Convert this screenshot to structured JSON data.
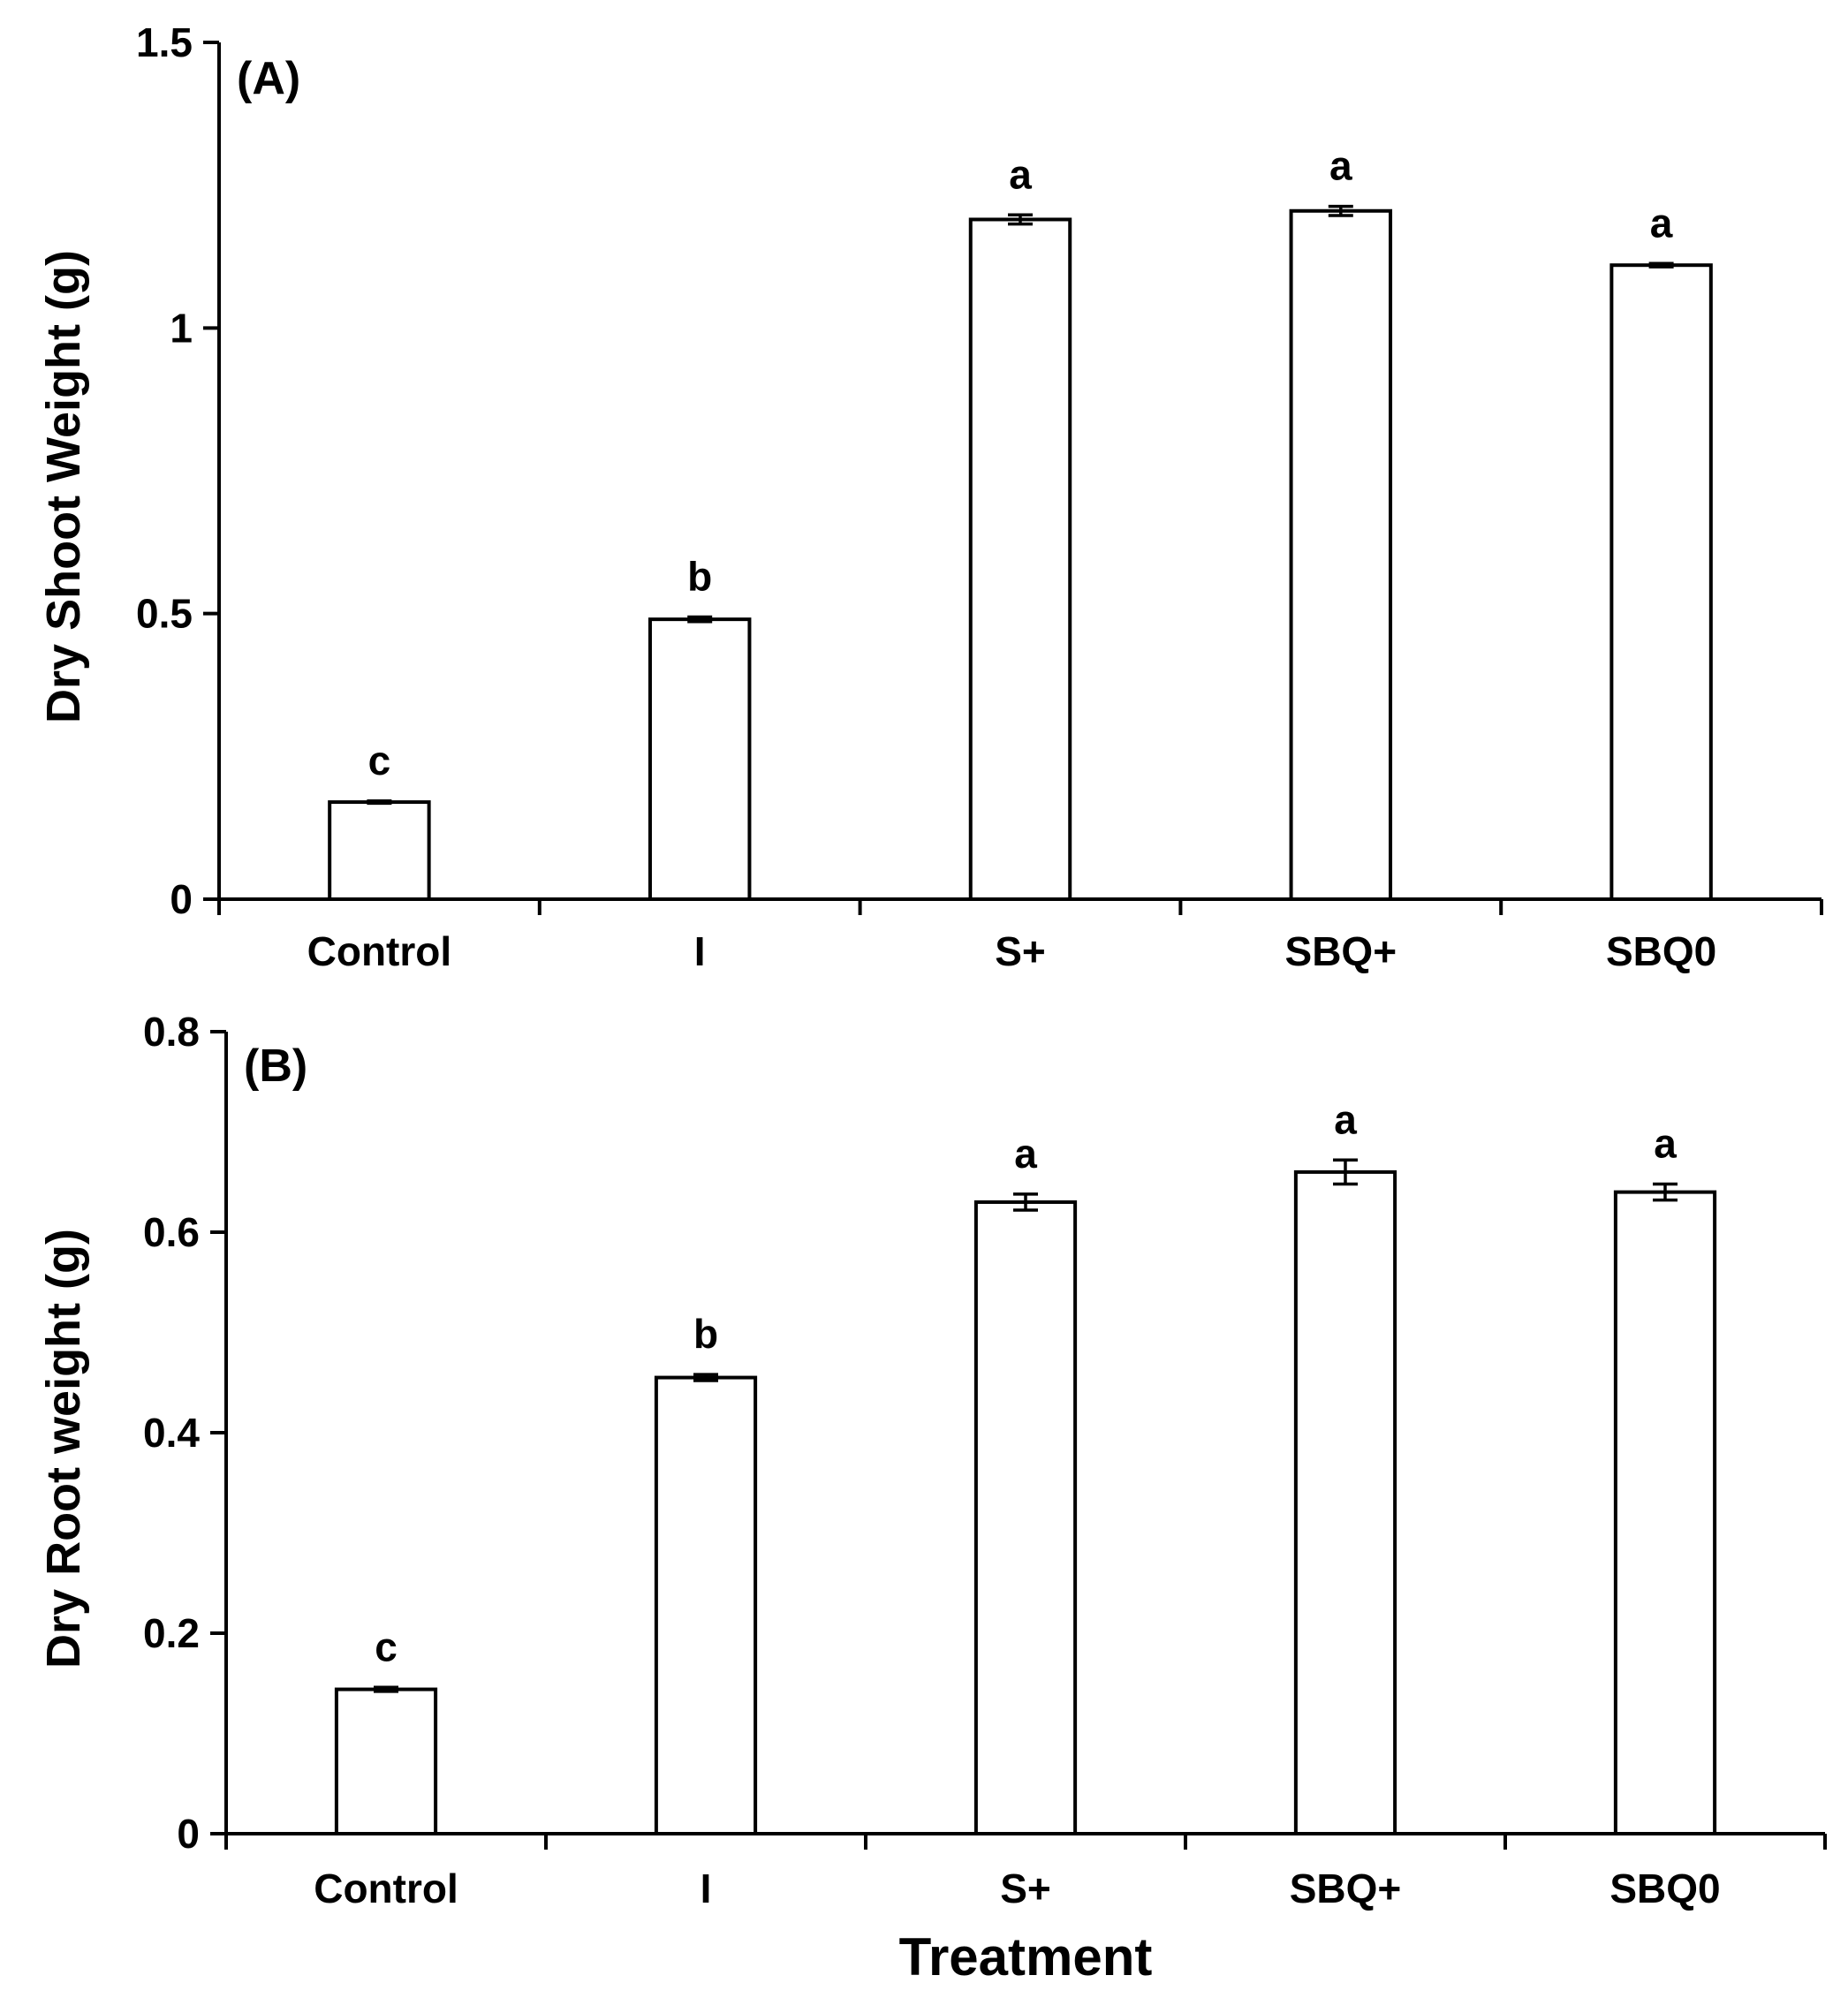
{
  "chart_data": [
    {
      "type": "bar",
      "panel_label": "(A)",
      "title": "",
      "xlabel": "",
      "ylabel": "Dry Shoot Weight (g)",
      "categories": [
        "Control",
        "I",
        "S+",
        "SBQ+",
        "SBQ0"
      ],
      "values": [
        0.17,
        0.49,
        1.19,
        1.205,
        1.11
      ],
      "errors": [
        0.002,
        0.004,
        0.008,
        0.008,
        0.003
      ],
      "significance_letters": [
        "c",
        "b",
        "a",
        "a",
        "a"
      ],
      "ylim": [
        0,
        1.5
      ],
      "yticks": [
        0,
        0.5,
        1,
        1.5
      ],
      "ytick_labels": [
        "0",
        "0.5",
        "1",
        "1.5"
      ],
      "grid": false,
      "colors": {
        "bar_fill": "#ffffff",
        "bar_edge": "#000000"
      }
    },
    {
      "type": "bar",
      "panel_label": "(B)",
      "title": "",
      "xlabel": "Treatment",
      "ylabel": "Dry Root weight (g)",
      "categories": [
        "Control",
        "I",
        "S+",
        "SBQ+",
        "SBQ0"
      ],
      "values": [
        0.144,
        0.455,
        0.63,
        0.66,
        0.64
      ],
      "errors": [
        0.002,
        0.003,
        0.008,
        0.012,
        0.008
      ],
      "significance_letters": [
        "c",
        "b",
        "a",
        "a",
        "a"
      ],
      "ylim": [
        0,
        0.8
      ],
      "yticks": [
        0,
        0.2,
        0.4,
        0.6,
        0.8
      ],
      "ytick_labels": [
        "0",
        "0.2",
        "0.4",
        "0.6",
        "0.8"
      ],
      "grid": false,
      "colors": {
        "bar_fill": "#ffffff",
        "bar_edge": "#000000"
      }
    }
  ]
}
